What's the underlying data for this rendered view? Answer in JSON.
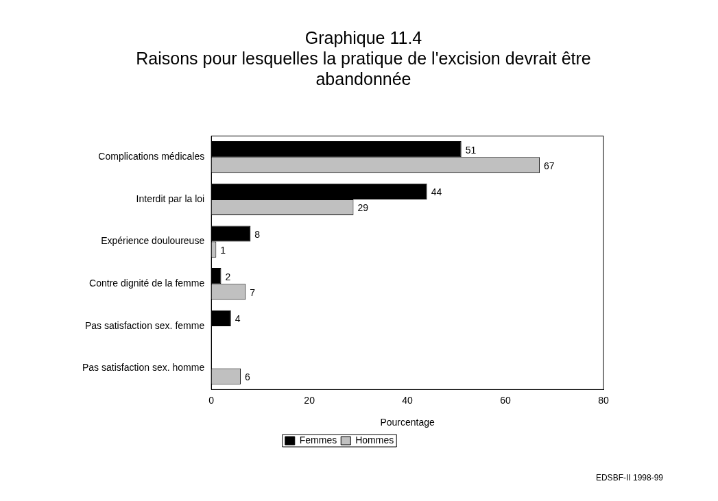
{
  "chart_data": {
    "type": "bar",
    "orientation": "horizontal",
    "title": "Graphique 11.4",
    "subtitle": "Raisons pour lesquelles la pratique de l'excision devrait être abandonnée",
    "xlabel": "Pourcentage",
    "categories": [
      "Complications médicales",
      "Interdit par la loi",
      "Expérience douloureuse",
      "Contre dignité de la femme",
      "Pas satisfaction sex. femme",
      "Pas satisfaction sex. homme"
    ],
    "series": [
      {
        "name": "Femmes",
        "color": "#000000",
        "values": [
          51,
          44,
          8,
          2,
          4,
          null
        ]
      },
      {
        "name": "Hommes",
        "color": "#c0c0c0",
        "values": [
          67,
          29,
          1,
          7,
          null,
          6
        ]
      }
    ],
    "xlim": [
      0,
      80
    ],
    "xticks": [
      0,
      20,
      40,
      60,
      80
    ],
    "grid": false,
    "legend": "bottom",
    "data_labels": true,
    "annotations": [
      "EDSBF-II 1998-99"
    ]
  }
}
